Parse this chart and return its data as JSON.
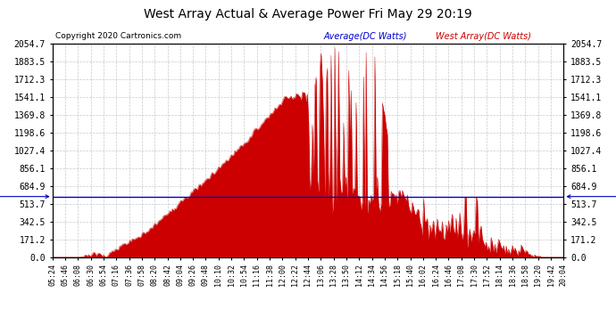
{
  "title": "West Array Actual & Average Power Fri May 29 20:19",
  "copyright": "Copyright 2020 Cartronics.com",
  "legend_avg": "Average(DC Watts)",
  "legend_west": "West Array(DC Watts)",
  "avg_value": 582.83,
  "y_ticks": [
    0.0,
    171.2,
    342.5,
    513.7,
    684.9,
    856.1,
    1027.4,
    1198.6,
    1369.8,
    1541.1,
    1712.3,
    1883.5,
    2054.7
  ],
  "ylim": [
    0.0,
    2054.7
  ],
  "background_color": "#ffffff",
  "fill_color": "#cc0000",
  "line_color": "#cc0000",
  "avg_line_color": "#0000bb",
  "grid_color": "#bbbbbb",
  "title_color": "#000000",
  "copyright_color": "#000000",
  "legend_avg_color": "#0000cc",
  "legend_west_color": "#cc0000",
  "x_labels": [
    "05:24",
    "05:46",
    "06:08",
    "06:30",
    "06:54",
    "07:16",
    "07:36",
    "07:58",
    "08:20",
    "08:42",
    "09:04",
    "09:26",
    "09:48",
    "10:10",
    "10:32",
    "10:54",
    "11:16",
    "11:38",
    "12:00",
    "12:22",
    "12:44",
    "13:06",
    "13:28",
    "13:50",
    "14:12",
    "14:34",
    "14:56",
    "15:18",
    "15:40",
    "16:02",
    "16:24",
    "16:46",
    "17:08",
    "17:30",
    "17:52",
    "18:14",
    "18:36",
    "18:58",
    "19:20",
    "19:42",
    "20:04"
  ],
  "n_points": 410
}
